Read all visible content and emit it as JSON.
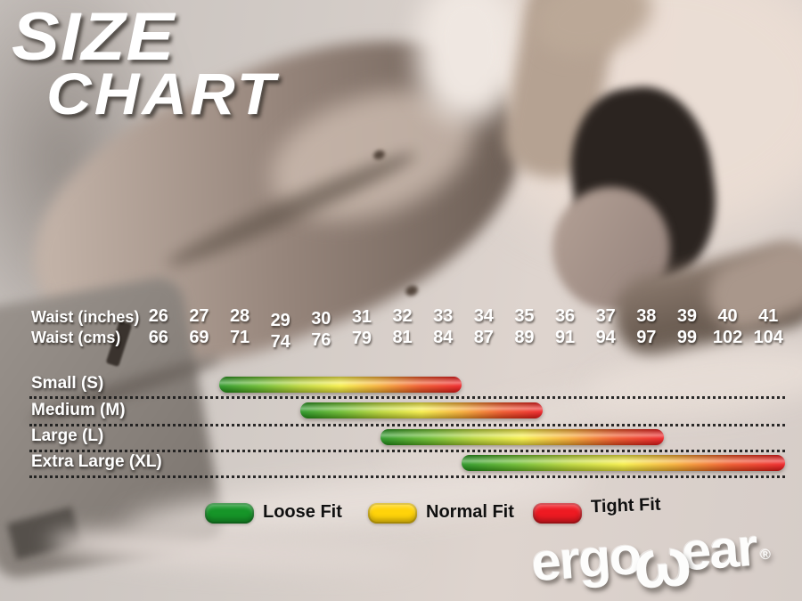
{
  "title": {
    "line1": "SIZE",
    "line2": "CHART"
  },
  "waist_table": {
    "row1_label": "Waist (inches)",
    "row2_label": "Waist (cms)",
    "inches": [
      "26",
      "27",
      "28",
      "29",
      "30",
      "31",
      "32",
      "33",
      "34",
      "35",
      "36",
      "37",
      "38",
      "39",
      "40",
      "41"
    ],
    "cms": [
      "66",
      "69",
      "71",
      "74",
      "76",
      "79",
      "81",
      "84",
      "87",
      "89",
      "91",
      "94",
      "97",
      "99",
      "102",
      "104"
    ]
  },
  "chart_data": {
    "type": "bar",
    "title": "SIZE CHART",
    "orientation": "horizontal",
    "x_axis": {
      "label_top": "Waist (inches)",
      "label_bottom": "Waist (cms)",
      "ticks_inches": [
        26,
        27,
        28,
        29,
        30,
        31,
        32,
        33,
        34,
        35,
        36,
        37,
        38,
        39,
        40,
        41
      ],
      "ticks_cms": [
        66,
        69,
        71,
        74,
        76,
        79,
        81,
        84,
        87,
        89,
        91,
        94,
        97,
        99,
        102,
        104
      ],
      "range_inches": [
        26,
        41
      ]
    },
    "series": [
      {
        "name": "Small (S)",
        "waist_inches_min": 27.5,
        "waist_inches_max": 33.5
      },
      {
        "name": "Medium (M)",
        "waist_inches_min": 29.5,
        "waist_inches_max": 35.5
      },
      {
        "name": "Large (L)",
        "waist_inches_min": 31.5,
        "waist_inches_max": 38.5
      },
      {
        "name": "Extra Large (XL)",
        "waist_inches_min": 33.5,
        "waist_inches_max": 41.5
      }
    ],
    "bar_gradient": [
      "#1d8f17",
      "#62b723",
      "#b8d42e",
      "#f6ed3d",
      "#f6a62a",
      "#ef4c1d",
      "#ec1418"
    ],
    "bar_meaning": "gradient along each bar encodes fit from loose (green) to tight (red)",
    "legend": [
      {
        "label": "Loose Fit",
        "color": "#169528"
      },
      {
        "label": "Normal Fit",
        "color": "#ffd30a"
      },
      {
        "label": "Tight Fit",
        "color": "#ee1a22"
      }
    ],
    "legend_position": "bottom",
    "grid": "dotted row separators"
  },
  "logo": {
    "part1": "ergo",
    "w_glyph": "ω",
    "part2": "ear",
    "registered": "®"
  }
}
